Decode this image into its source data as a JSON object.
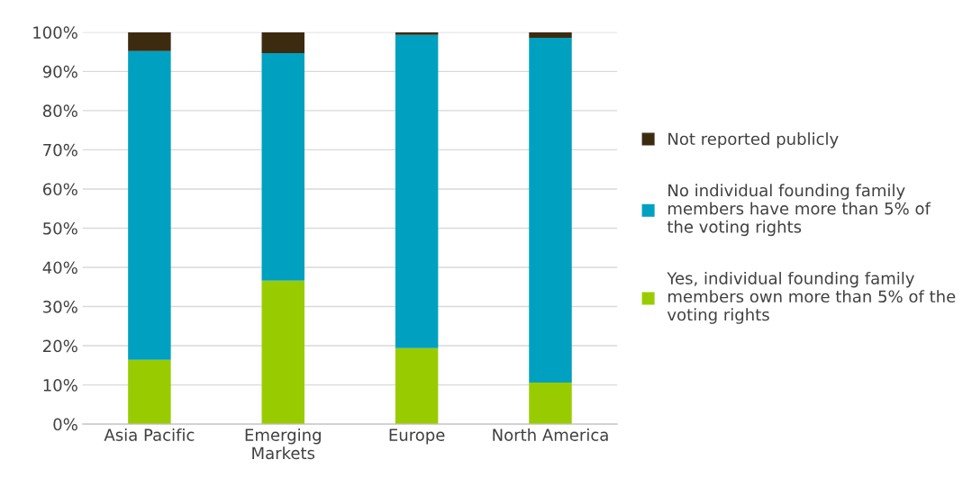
{
  "chart_data": {
    "type": "bar",
    "stacked": true,
    "categories": [
      "Asia Pacific",
      "Emerging\nMarkets",
      "Europe",
      "North America"
    ],
    "series": [
      {
        "name": "Yes, individual founding family\nmembers own more than 5% of the\nvoting rights",
        "color": "#99cc00",
        "values": [
          16.4,
          36.6,
          19.4,
          10.6
        ]
      },
      {
        "name": "No individual founding family\nmembers have more than 5% of\nthe voting rights",
        "color": "#00a0c0",
        "values": [
          78.8,
          58.1,
          79.9,
          88.0
        ]
      },
      {
        "name": "Not reported publicly",
        "color": "#3d2b10",
        "values": [
          4.8,
          5.3,
          0.7,
          1.4
        ]
      }
    ],
    "ylim": [
      0,
      100
    ],
    "yticks": [
      {
        "value": 0,
        "label": "0%"
      },
      {
        "value": 10,
        "label": "10%"
      },
      {
        "value": 20,
        "label": "20%"
      },
      {
        "value": 30,
        "label": "30%"
      },
      {
        "value": 40,
        "label": "40%"
      },
      {
        "value": 50,
        "label": "50%"
      },
      {
        "value": 60,
        "label": "60%"
      },
      {
        "value": 70,
        "label": "70%"
      },
      {
        "value": 80,
        "label": "80%"
      },
      {
        "value": 90,
        "label": "90%"
      },
      {
        "value": 100,
        "label": "100%"
      }
    ],
    "grid": "y",
    "legend": "right"
  }
}
